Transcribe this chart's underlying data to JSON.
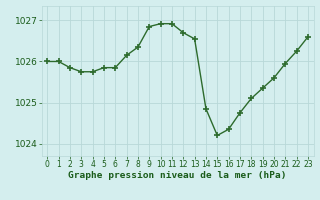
{
  "x": [
    0,
    1,
    2,
    3,
    4,
    5,
    6,
    7,
    8,
    9,
    10,
    11,
    12,
    13,
    14,
    15,
    16,
    17,
    18,
    19,
    20,
    21,
    22,
    23
  ],
  "y": [
    1026.0,
    1026.0,
    1025.85,
    1025.75,
    1025.75,
    1025.85,
    1025.85,
    1026.15,
    1026.35,
    1026.85,
    1026.92,
    1026.92,
    1026.7,
    1026.55,
    1024.85,
    1024.2,
    1024.35,
    1024.75,
    1025.1,
    1025.35,
    1025.6,
    1025.95,
    1026.25,
    1026.6
  ],
  "line_color": "#2d6b2d",
  "marker": "+",
  "markersize": 4.0,
  "linewidth": 1.0,
  "bg_color": "#d4eeee",
  "plot_bg_color": "#d4eeee",
  "grid_color": "#b8d8d8",
  "xlabel": "Graphe pression niveau de la mer (hPa)",
  "xlabel_color": "#1a5c1a",
  "xlabel_fontsize": 6.8,
  "tick_color": "#1a5c1a",
  "ytick_fontsize": 6.5,
  "xtick_fontsize": 5.5,
  "ylim": [
    1023.7,
    1027.35
  ],
  "yticks": [
    1024,
    1025,
    1026,
    1027
  ],
  "xlim": [
    -0.5,
    23.5
  ],
  "xticks": [
    0,
    1,
    2,
    3,
    4,
    5,
    6,
    7,
    8,
    9,
    10,
    11,
    12,
    13,
    14,
    15,
    16,
    17,
    18,
    19,
    20,
    21,
    22,
    23
  ]
}
